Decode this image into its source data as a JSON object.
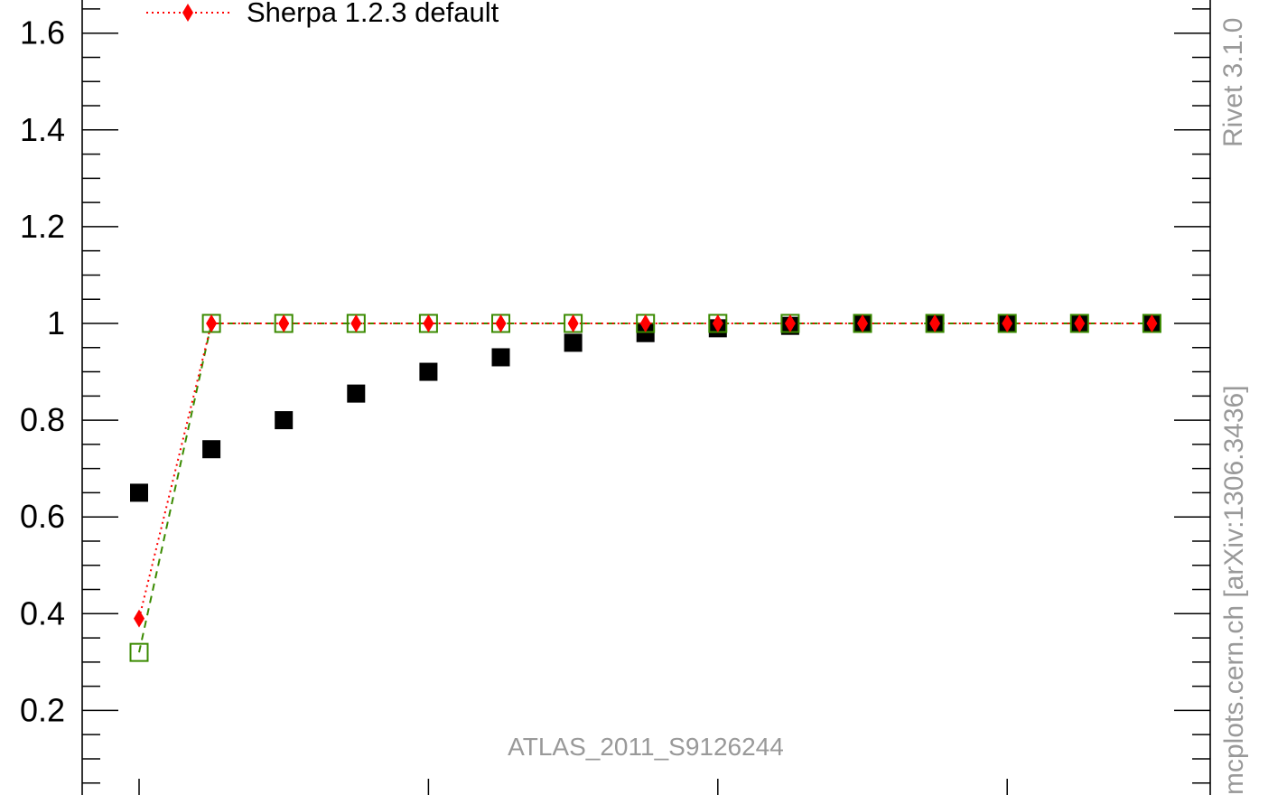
{
  "chart_data": {
    "type": "scatter",
    "title": "",
    "xlabel": "",
    "ylabel": "",
    "ylim": [
      0.0,
      1.65
    ],
    "grid": false,
    "legend_placement": "top-left",
    "yticks": [
      0.2,
      0.4,
      0.6,
      0.8,
      1.0,
      1.2,
      1.4,
      1.6
    ],
    "ytick_labels": [
      "0.2",
      "0.4",
      "0.6",
      "0.8",
      "1",
      "1.2",
      "1.4",
      "1.6"
    ],
    "x": [
      1,
      2,
      3,
      4,
      5,
      6,
      7,
      8,
      9,
      10,
      11,
      12,
      13,
      14,
      15
    ],
    "series": [
      {
        "name": "",
        "role": "data",
        "color": "#000000",
        "marker": "filled-square",
        "line": "none",
        "values": [
          0.65,
          0.74,
          0.8,
          0.855,
          0.9,
          0.93,
          0.96,
          0.98,
          0.99,
          0.995,
          1.0,
          1.0,
          1.0,
          1.0,
          1.0
        ]
      },
      {
        "name": "",
        "role": "mc",
        "color": "#3a8a00",
        "marker": "open-square",
        "line": "dashed",
        "values": [
          0.32,
          1.0,
          1.0,
          1.0,
          1.0,
          1.0,
          1.0,
          1.0,
          1.0,
          1.0,
          1.0,
          1.0,
          1.0,
          1.0,
          1.0
        ]
      },
      {
        "name": "Sherpa 1.2.3 default",
        "role": "mc",
        "color": "#ff0000",
        "marker": "filled-diamond",
        "line": "dotted",
        "values": [
          0.39,
          1.0,
          1.0,
          1.0,
          1.0,
          1.0,
          1.0,
          1.0,
          1.0,
          1.0,
          1.0,
          1.0,
          1.0,
          1.0,
          1.0
        ]
      }
    ],
    "annotations": {
      "analysis": "ATLAS_2011_S9126244",
      "side_label_top": "Rivet 3.1.0",
      "side_label_bottom": "mcplots.cern.ch [arXiv:1306.3436]"
    }
  }
}
